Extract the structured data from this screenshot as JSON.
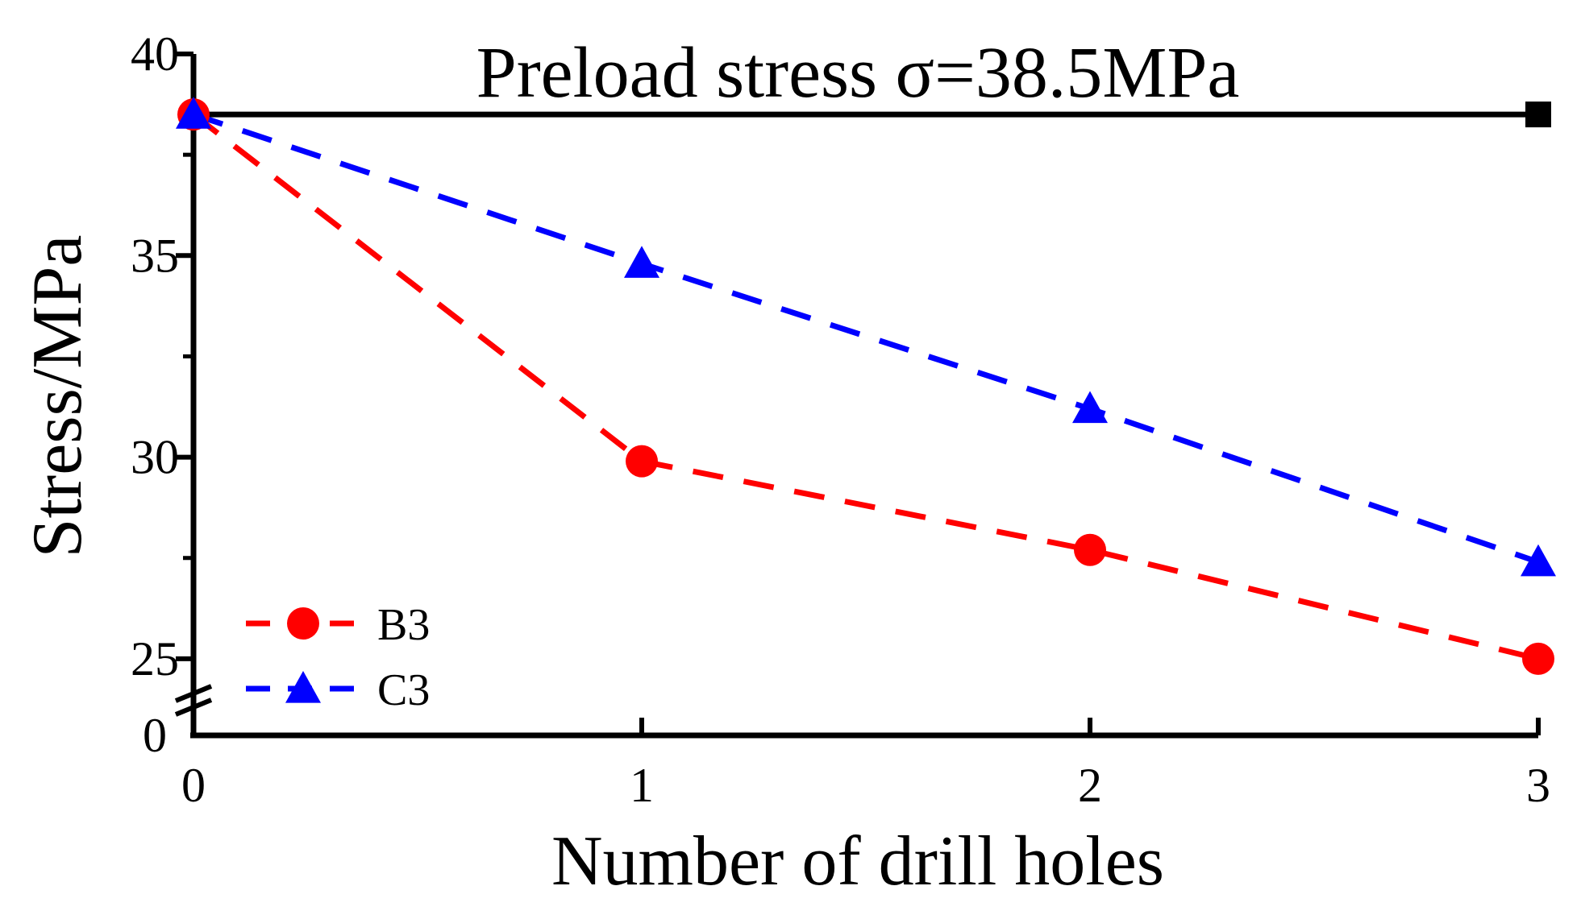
{
  "chart_data": {
    "type": "line",
    "title": "Preload stress σ=38.5MPa",
    "xlabel": "Number of drill holes",
    "ylabel": "Stress/MPa",
    "x": [
      0,
      1,
      2,
      3
    ],
    "x_ticks": [
      "0",
      "1",
      "2",
      "3"
    ],
    "y_ticks": [
      {
        "value": 40,
        "label": "40"
      },
      {
        "value": 35,
        "label": "35"
      },
      {
        "value": 30,
        "label": "30"
      },
      {
        "value": 25,
        "label": "25"
      }
    ],
    "y_break_label": "0",
    "ylim": [
      23.1,
      40
    ],
    "xlim": [
      0,
      3
    ],
    "grid": false,
    "legend_position": "bottom-left",
    "reference": {
      "name": "Preload stress",
      "values": [
        38.5,
        38.5
      ],
      "x": [
        0,
        3
      ],
      "color": "#000000",
      "marker": "square"
    },
    "series": [
      {
        "name": "B3",
        "values": [
          38.5,
          29.9,
          27.7,
          25.0
        ],
        "color": "#ff0000",
        "marker": "circle",
        "line": "dashed"
      },
      {
        "name": "C3",
        "values": [
          38.5,
          34.8,
          31.2,
          27.4
        ],
        "color": "#0000ff",
        "marker": "triangle",
        "line": "dashed"
      }
    ]
  }
}
